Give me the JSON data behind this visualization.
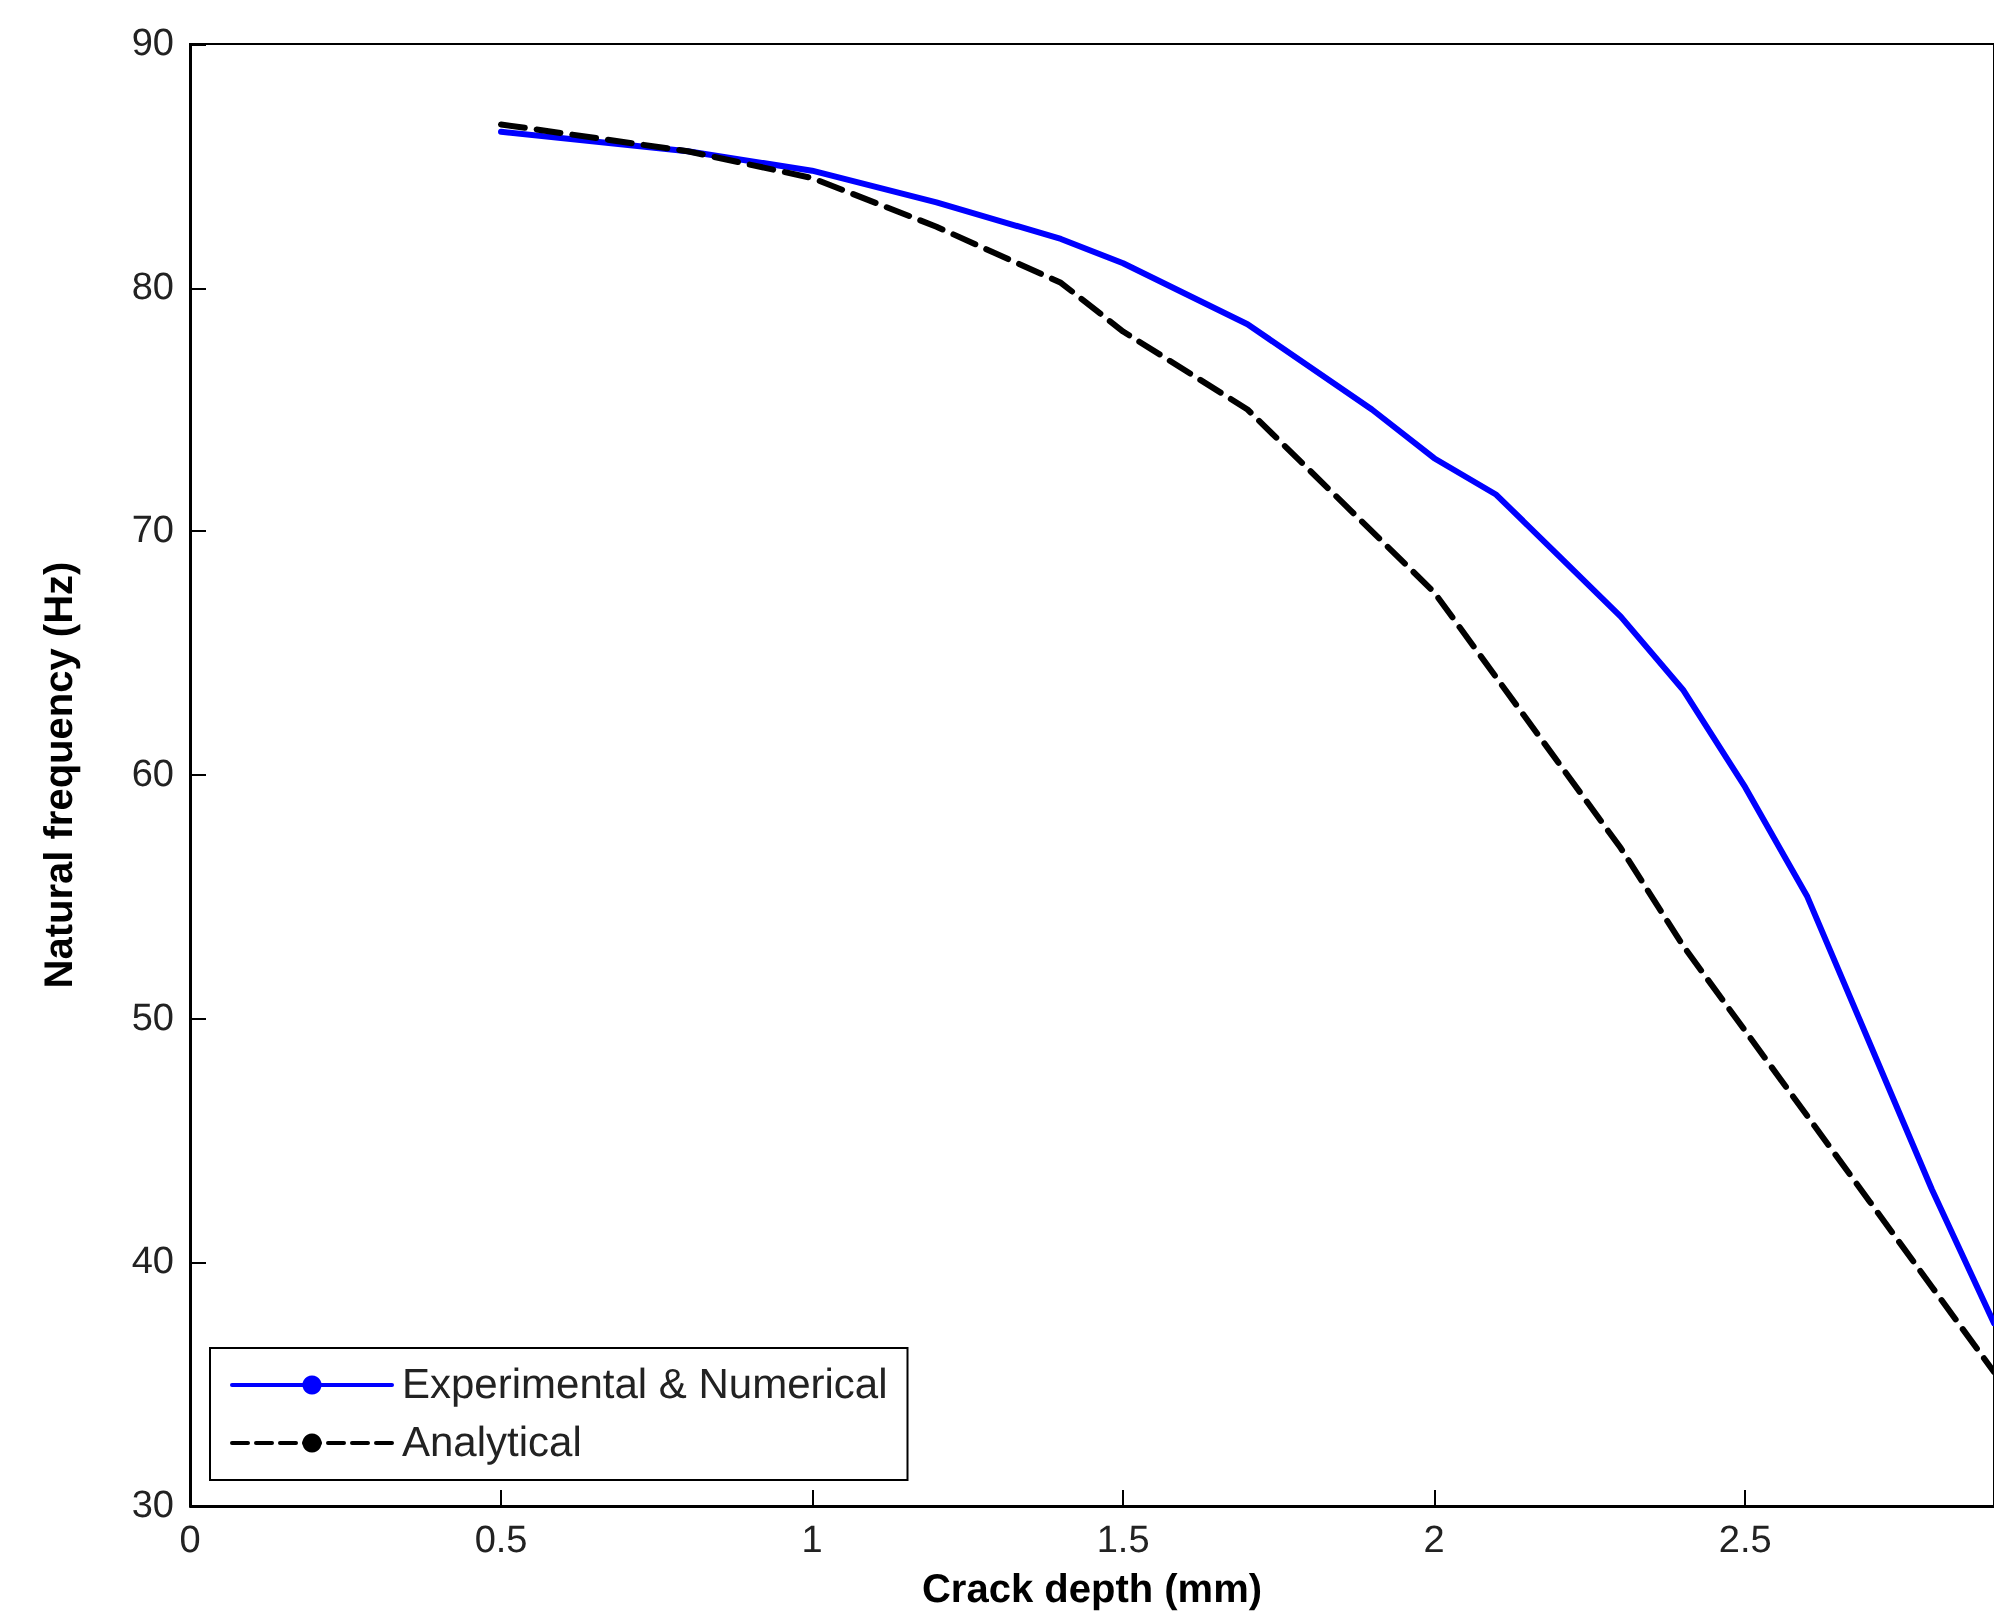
{
  "chart_data": {
    "type": "line",
    "xlabel": "Crack depth (mm)",
    "ylabel": "Natural frequency (Hz)",
    "xlim": [
      0,
      2.9
    ],
    "xticks": [
      0,
      0.5,
      1,
      1.5,
      2,
      2.5
    ],
    "ylim": [
      30,
      90
    ],
    "yticks": [
      30,
      40,
      50,
      60,
      70,
      80,
      90
    ],
    "grid": false,
    "legend": "bottom left",
    "marker": "none",
    "series": [
      {
        "name": "Experimental & Numerical",
        "color": "#0000ff",
        "line_style": "solid",
        "x": [
          0.5,
          0.8,
          1.0,
          1.2,
          1.4,
          1.5,
          1.7,
          1.9,
          2.0,
          2.1,
          2.2,
          2.3,
          2.4,
          2.5,
          2.6,
          2.7,
          2.8,
          2.9
        ],
        "values": [
          86.4,
          85.6,
          84.8,
          83.5,
          82,
          81,
          78.5,
          75,
          73,
          71.5,
          69,
          66.5,
          63.5,
          59.5,
          55,
          49,
          43,
          37.5
        ]
      },
      {
        "name": "Analytical",
        "color": "#000000",
        "line_style": "dashed",
        "x": [
          0.5,
          0.8,
          1.0,
          1.2,
          1.4,
          1.5,
          1.7,
          1.8,
          2.0,
          2.1,
          2.2,
          2.3,
          2.4,
          2.5,
          2.6,
          2.7,
          2.8,
          2.9
        ],
        "values": [
          86.7,
          85.6,
          84.5,
          82.5,
          80.2,
          78.2,
          75,
          72.5,
          67.5,
          64,
          60.5,
          57,
          53,
          49.5,
          46,
          42.5,
          39,
          35.5
        ]
      }
    ]
  }
}
